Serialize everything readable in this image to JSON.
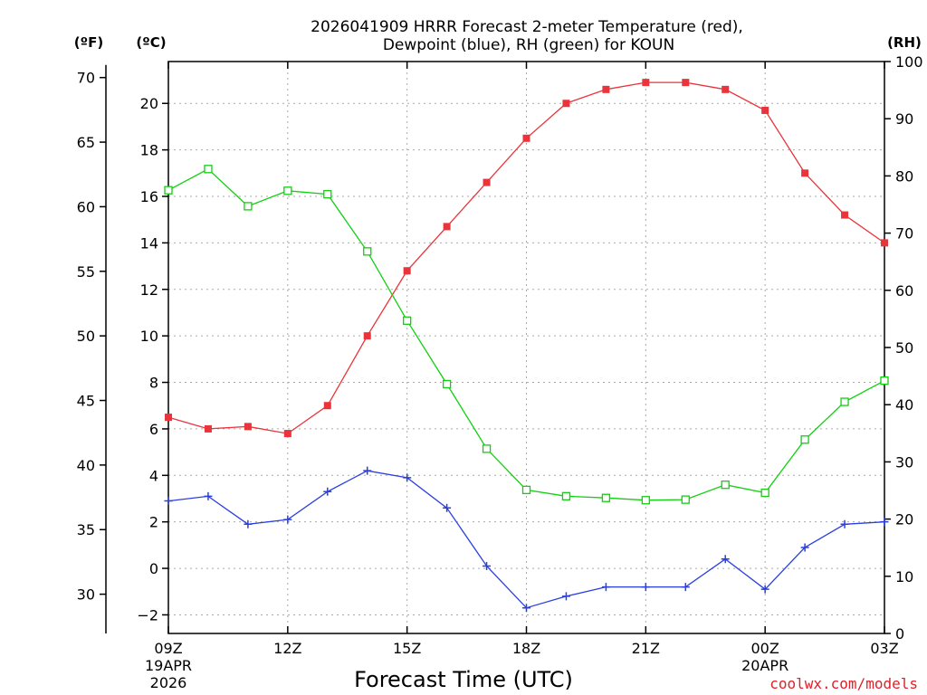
{
  "chart_data": {
    "type": "line",
    "title_line1": "2026041909 HRRR Forecast 2-meter Temperature (red),",
    "title_line2": "Dewpoint (blue), RH (green) for KOUN",
    "xlabel": "Forecast Time (UTC)",
    "credit": "coolwx.com/models",
    "left_unit_f": "(ºF)",
    "left_unit_c": "(ºC)",
    "right_unit": "(RH)",
    "x_hours": [
      0,
      1,
      2,
      3,
      4,
      5,
      6,
      7,
      8,
      9,
      10,
      11,
      12,
      13,
      14,
      15,
      16,
      17,
      18
    ],
    "x_ticks": [
      {
        "hour": 0,
        "label": "09Z",
        "sub1": "19APR",
        "sub2": "2026"
      },
      {
        "hour": 3,
        "label": "12Z",
        "sub1": "",
        "sub2": ""
      },
      {
        "hour": 6,
        "label": "15Z",
        "sub1": "",
        "sub2": ""
      },
      {
        "hour": 9,
        "label": "18Z",
        "sub1": "",
        "sub2": ""
      },
      {
        "hour": 12,
        "label": "21Z",
        "sub1": "",
        "sub2": ""
      },
      {
        "hour": 15,
        "label": "00Z",
        "sub1": "20APR",
        "sub2": ""
      },
      {
        "hour": 18,
        "label": "03Z",
        "sub1": "",
        "sub2": ""
      }
    ],
    "celsius_axis": {
      "min": -2.8,
      "max": 21.8,
      "ticks": [
        -2,
        0,
        2,
        4,
        6,
        8,
        10,
        12,
        14,
        16,
        18,
        20
      ]
    },
    "fahrenheit_ticks": [
      30,
      35,
      40,
      45,
      50,
      55,
      60,
      65,
      70
    ],
    "rh_axis": {
      "min": 0,
      "max": 100,
      "ticks": [
        0,
        10,
        20,
        30,
        40,
        50,
        60,
        70,
        80,
        90,
        100
      ]
    },
    "series": [
      {
        "name": "Temperature",
        "unit": "C",
        "color": "#e8343a",
        "marker": "filled-square",
        "values": [
          6.5,
          6.0,
          6.1,
          5.8,
          7.0,
          10.0,
          12.8,
          14.7,
          16.6,
          18.5,
          20.0,
          20.6,
          20.9,
          20.9,
          20.6,
          19.7,
          17.0,
          15.2,
          14.0
        ]
      },
      {
        "name": "Dewpoint",
        "unit": "C",
        "color": "#2a3fe0",
        "marker": "plus",
        "values": [
          2.9,
          3.1,
          1.9,
          2.1,
          3.3,
          4.2,
          3.9,
          2.6,
          0.1,
          -1.7,
          -1.2,
          -0.8,
          -0.8,
          -0.8,
          0.4,
          -0.9,
          0.9,
          1.9,
          2.0
        ]
      },
      {
        "name": "RH",
        "unit": "%",
        "color": "#10d010",
        "marker": "open-square",
        "values": [
          77.5,
          81.2,
          74.7,
          77.4,
          76.8,
          66.8,
          54.7,
          43.6,
          32.3,
          25.1,
          24.0,
          23.7,
          23.3,
          23.4,
          26.0,
          24.6,
          33.9,
          40.5,
          44.2
        ]
      }
    ]
  }
}
